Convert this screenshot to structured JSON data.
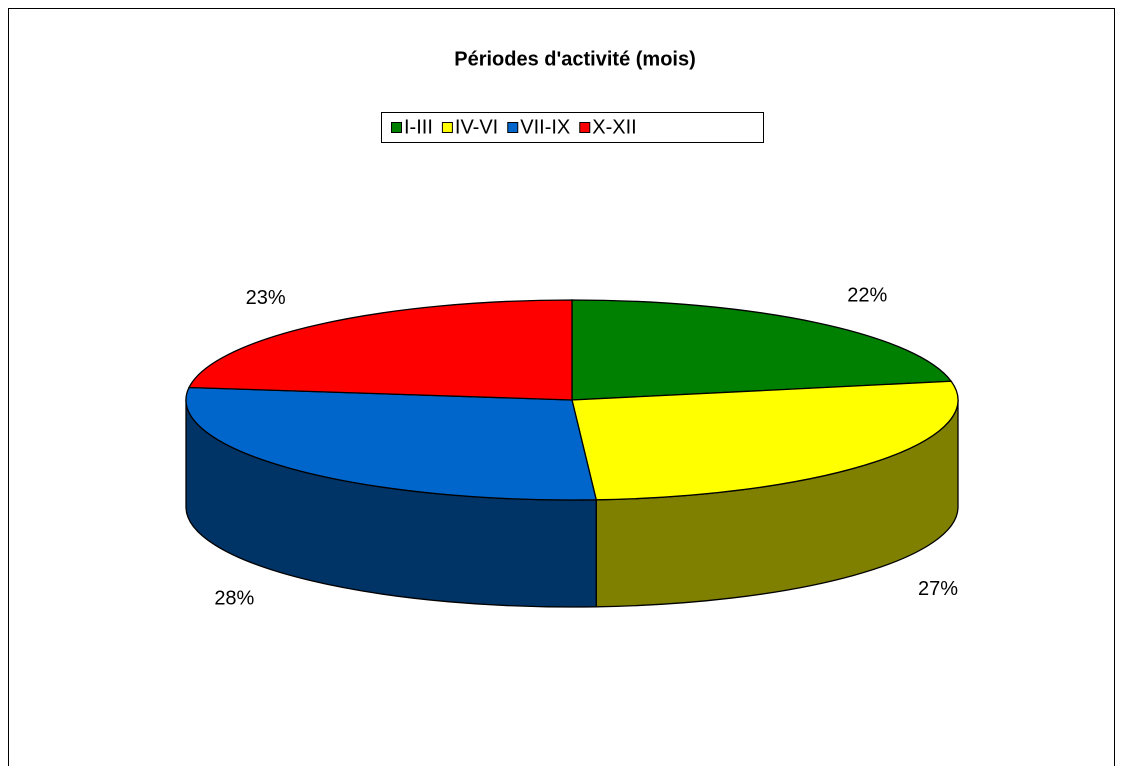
{
  "chart_data": {
    "type": "pie3d",
    "title": "Périodes d'activité (mois)",
    "categories": [
      "I-III",
      "IV-VI",
      "VII-IX",
      "X-XII"
    ],
    "values": [
      22,
      27,
      28,
      23
    ],
    "value_labels": [
      "22%",
      "27%",
      "28%",
      "23%"
    ],
    "colors": [
      "#008000",
      "#ffff00",
      "#0066cc",
      "#ff0000"
    ],
    "legend": "top"
  }
}
